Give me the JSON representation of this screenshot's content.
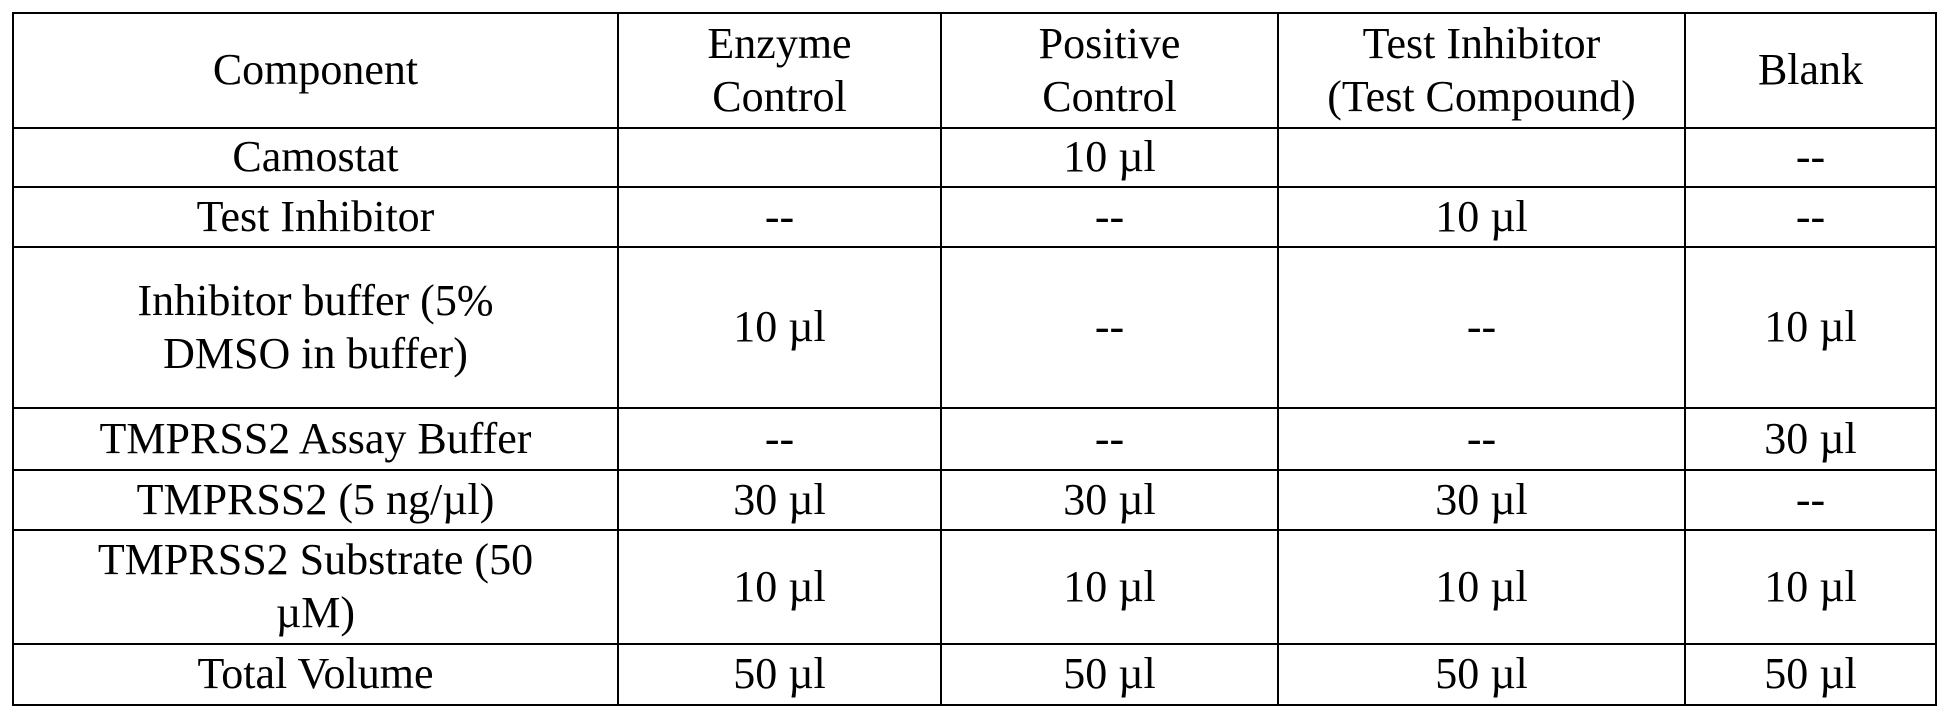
{
  "table": {
    "header": [
      "Component",
      "Enzyme\nControl",
      "Positive\nControl",
      "Test Inhibitor\n(Test Compound)",
      "Blank"
    ],
    "rows": [
      [
        "Camostat",
        null,
        "10 µl",
        null,
        "--"
      ],
      [
        "Test Inhibitor",
        "--",
        "--",
        "10 µl",
        "--"
      ],
      [
        "Inhibitor buffer (5%\nDMSO in buffer)",
        "10 µl",
        "--",
        "--",
        "10 µl"
      ],
      [
        "TMPRSS2 Assay Buffer",
        "--",
        "--",
        "--",
        "30 µl"
      ],
      [
        "TMPRSS2 (5 ng/µl)",
        "30 µl",
        "30 µl",
        "30 µl",
        "--"
      ],
      [
        "TMPRSS2 Substrate (50\nµM)",
        "10 µl",
        "10 µl",
        "10 µl",
        "10 µl"
      ],
      [
        "Total Volume",
        "50 µl",
        "50 µl",
        "50 µl",
        "50 µl"
      ]
    ]
  }
}
